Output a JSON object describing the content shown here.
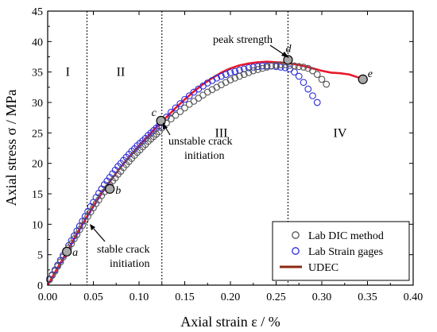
{
  "chart_data": {
    "type": "scatter",
    "xlabel": "Axial strain ε / %",
    "ylabel": "Axial stress σ / MPa",
    "xlim": [
      0.0,
      0.4
    ],
    "ylim": [
      0,
      45
    ],
    "xticks": [
      "0.00",
      "0.05",
      "0.10",
      "0.15",
      "0.20",
      "0.25",
      "0.30",
      "0.35",
      "0.40"
    ],
    "yticks": [
      "0",
      "5",
      "10",
      "15",
      "20",
      "25",
      "30",
      "35",
      "40",
      "45"
    ],
    "legend_position": "bottom-right",
    "grid": false,
    "series": [
      {
        "name": "Lab DIC method",
        "kind": "markers",
        "marker": "open-circle",
        "color": "#555555",
        "x": [
          0.002,
          0.005,
          0.008,
          0.011,
          0.014,
          0.017,
          0.02,
          0.023,
          0.026,
          0.029,
          0.032,
          0.035,
          0.038,
          0.041,
          0.044,
          0.047,
          0.05,
          0.053,
          0.056,
          0.059,
          0.062,
          0.065,
          0.068,
          0.071,
          0.074,
          0.077,
          0.08,
          0.083,
          0.086,
          0.089,
          0.092,
          0.095,
          0.098,
          0.101,
          0.104,
          0.107,
          0.11,
          0.113,
          0.116,
          0.119,
          0.122,
          0.125,
          0.13,
          0.135,
          0.14,
          0.145,
          0.15,
          0.155,
          0.16,
          0.165,
          0.17,
          0.175,
          0.18,
          0.185,
          0.19,
          0.195,
          0.2,
          0.205,
          0.21,
          0.215,
          0.22,
          0.225,
          0.23,
          0.235,
          0.24,
          0.245,
          0.25,
          0.255,
          0.26,
          0.265,
          0.27,
          0.275,
          0.28,
          0.285,
          0.29,
          0.295,
          0.3,
          0.305
        ],
        "y": [
          0.9,
          1.6,
          2.3,
          3.1,
          3.8,
          4.6,
          5.3,
          6.1,
          6.8,
          7.6,
          8.3,
          9.1,
          9.8,
          10.6,
          11.3,
          12.0,
          12.7,
          13.4,
          14.0,
          14.7,
          15.3,
          15.9,
          16.5,
          17.1,
          17.6,
          18.2,
          18.7,
          19.3,
          19.8,
          20.3,
          20.8,
          21.3,
          21.8,
          22.2,
          22.7,
          23.1,
          23.6,
          24.0,
          24.4,
          24.8,
          25.2,
          25.8,
          26.6,
          27.3,
          27.9,
          28.5,
          29.1,
          29.7,
          30.2,
          30.7,
          31.2,
          31.7,
          32.1,
          32.5,
          32.9,
          33.3,
          33.7,
          34.0,
          34.3,
          34.6,
          34.9,
          35.2,
          35.4,
          35.6,
          35.8,
          36.0,
          36.1,
          36.2,
          36.2,
          36.1,
          36.0,
          35.9,
          35.8,
          35.6,
          35.2,
          34.6,
          33.8,
          33.0
        ]
      },
      {
        "name": "Lab Strain gages",
        "kind": "markers",
        "marker": "open-circle",
        "color": "#2b2bd8",
        "x": [
          0.002,
          0.005,
          0.008,
          0.011,
          0.014,
          0.017,
          0.02,
          0.023,
          0.026,
          0.029,
          0.032,
          0.035,
          0.038,
          0.041,
          0.044,
          0.047,
          0.05,
          0.053,
          0.056,
          0.059,
          0.062,
          0.065,
          0.068,
          0.071,
          0.074,
          0.077,
          0.08,
          0.083,
          0.086,
          0.089,
          0.092,
          0.095,
          0.098,
          0.101,
          0.104,
          0.107,
          0.11,
          0.113,
          0.116,
          0.119,
          0.122,
          0.125,
          0.13,
          0.135,
          0.14,
          0.145,
          0.15,
          0.155,
          0.16,
          0.165,
          0.17,
          0.175,
          0.18,
          0.185,
          0.19,
          0.195,
          0.2,
          0.205,
          0.21,
          0.215,
          0.22,
          0.225,
          0.23,
          0.235,
          0.24,
          0.245,
          0.25,
          0.255,
          0.26,
          0.265,
          0.27,
          0.275,
          0.28,
          0.285,
          0.29,
          0.295
        ],
        "y": [
          1.0,
          1.7,
          2.5,
          3.3,
          4.1,
          4.9,
          5.7,
          6.5,
          7.3,
          8.1,
          8.9,
          9.7,
          10.5,
          11.3,
          12.1,
          12.9,
          13.6,
          14.4,
          15.1,
          15.8,
          16.5,
          17.1,
          17.7,
          18.3,
          18.9,
          19.5,
          20.0,
          20.5,
          21.0,
          21.5,
          22.0,
          22.4,
          22.9,
          23.3,
          23.7,
          24.1,
          24.6,
          25.0,
          25.4,
          25.8,
          26.2,
          26.7,
          27.6,
          28.4,
          29.1,
          29.8,
          30.5,
          31.1,
          31.7,
          32.2,
          32.7,
          33.2,
          33.6,
          34.0,
          34.3,
          34.6,
          34.9,
          35.1,
          35.3,
          35.5,
          35.7,
          35.8,
          35.9,
          36.0,
          36.0,
          36.0,
          35.9,
          35.8,
          35.7,
          35.5,
          35.0,
          34.3,
          33.3,
          32.2,
          31.1,
          30.0
        ]
      },
      {
        "name": "UDEC",
        "kind": "line",
        "color": "#e8192c",
        "legend_color": "#8b2a12",
        "x": [
          0.0,
          0.01,
          0.02,
          0.03,
          0.04,
          0.05,
          0.06,
          0.07,
          0.08,
          0.09,
          0.1,
          0.11,
          0.12,
          0.13,
          0.14,
          0.15,
          0.16,
          0.17,
          0.18,
          0.19,
          0.2,
          0.21,
          0.22,
          0.23,
          0.24,
          0.25,
          0.26,
          0.27,
          0.28,
          0.29,
          0.3,
          0.31,
          0.32,
          0.33,
          0.34,
          0.345
        ],
        "y": [
          0.0,
          2.6,
          5.2,
          7.9,
          10.5,
          13.0,
          15.3,
          17.4,
          19.4,
          21.2,
          22.9,
          24.5,
          26.1,
          27.6,
          29.1,
          30.5,
          31.8,
          33.0,
          34.0,
          34.9,
          35.6,
          36.1,
          36.4,
          36.6,
          36.7,
          36.6,
          36.5,
          36.3,
          36.0,
          35.6,
          35.2,
          34.9,
          34.8,
          34.6,
          34.1,
          33.8
        ]
      }
    ],
    "markers": [
      {
        "label": "a",
        "x": 0.021,
        "y": 5.5
      },
      {
        "label": "b",
        "x": 0.068,
        "y": 15.8
      },
      {
        "label": "c",
        "x": 0.124,
        "y": 27.0
      },
      {
        "label": "d",
        "x": 0.263,
        "y": 37.0
      },
      {
        "label": "e",
        "x": 0.345,
        "y": 33.8
      }
    ],
    "boundaries_x": [
      0.043,
      0.125,
      0.263
    ],
    "regions": [
      {
        "label": "I",
        "x": 0.022,
        "y": 35
      },
      {
        "label": "II",
        "x": 0.08,
        "y": 35
      },
      {
        "label": "III",
        "x": 0.19,
        "y": 25
      },
      {
        "label": "IV",
        "x": 0.32,
        "y": 25
      }
    ],
    "annotations": [
      {
        "lines": [
          "peak strength"
        ]
      },
      {
        "lines": [
          "unstable crack",
          "initiation"
        ]
      },
      {
        "lines": [
          "stable crack",
          "initiation"
        ]
      }
    ]
  }
}
